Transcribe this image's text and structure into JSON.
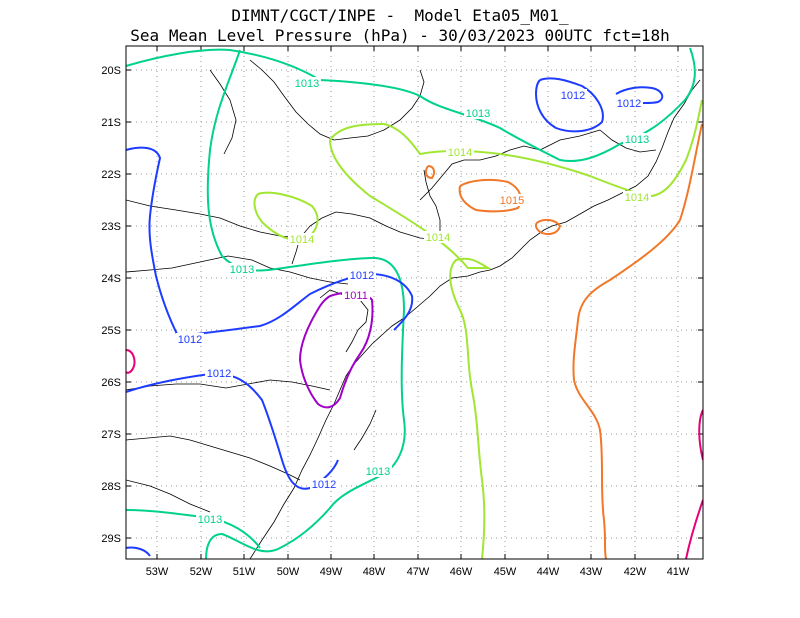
{
  "title": {
    "line1": "DIMNT/CGCT/INPE -  Model Eta05_M01_",
    "line2": "Sea Mean Level Pressure (hPa) - 30/03/2023 00UTC fct=18h"
  },
  "axes": {
    "lat_labels": [
      "20S",
      "21S",
      "22S",
      "23S",
      "24S",
      "25S",
      "26S",
      "27S",
      "28S",
      "29S"
    ],
    "lon_labels": [
      "53W",
      "52W",
      "51W",
      "50W",
      "49W",
      "48W",
      "47W",
      "46W",
      "45W",
      "44W",
      "43W",
      "42W",
      "41W"
    ]
  },
  "colors": {
    "1011": "#a000c8",
    "1012": "#1e3cff",
    "1013": "#00d28c",
    "1014": "#a0e632",
    "1015": "#f07828",
    "1016": "#e6007a",
    "grid": "#999999",
    "coast": "#000000"
  },
  "contour_labels": [
    {
      "text": "1013",
      "level": "1013"
    },
    {
      "text": "1013",
      "level": "1013"
    },
    {
      "text": "1013",
      "level": "1013"
    },
    {
      "text": "1013",
      "level": "1013"
    },
    {
      "text": "1013",
      "level": "1013"
    },
    {
      "text": "1013",
      "level": "1013"
    },
    {
      "text": "1014",
      "level": "1014"
    },
    {
      "text": "1014",
      "level": "1014"
    },
    {
      "text": "1014",
      "level": "1014"
    },
    {
      "text": "1014",
      "level": "1014"
    },
    {
      "text": "1015",
      "level": "1015"
    },
    {
      "text": "1012",
      "level": "1012"
    },
    {
      "text": "1012",
      "level": "1012"
    },
    {
      "text": "1012",
      "level": "1012"
    },
    {
      "text": "1012",
      "level": "1012"
    },
    {
      "text": "1012",
      "level": "1012"
    },
    {
      "text": "1012",
      "level": "1012"
    },
    {
      "text": "1011",
      "level": "1011"
    }
  ]
}
